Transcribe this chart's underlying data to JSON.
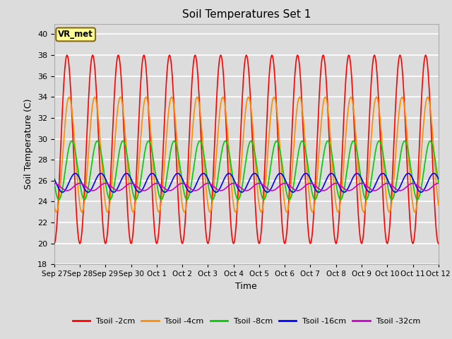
{
  "title": "Soil Temperatures Set 1",
  "xlabel": "Time",
  "ylabel": "Soil Temperature (C)",
  "ylim": [
    18,
    41
  ],
  "yticks": [
    18,
    20,
    22,
    24,
    26,
    28,
    30,
    32,
    34,
    36,
    38,
    40
  ],
  "background_color": "#dcdcdc",
  "plot_bg_color": "#dcdcdc",
  "grid_color": "white",
  "annotation_text": "VR_met",
  "annotation_box_color": "#ffff99",
  "annotation_border_color": "#8b6914",
  "series": {
    "Tsoil -2cm": {
      "color": "#ff0000",
      "lw": 1.2
    },
    "Tsoil -4cm": {
      "color": "#ff8c00",
      "lw": 1.2
    },
    "Tsoil -8cm": {
      "color": "#00cc00",
      "lw": 1.2
    },
    "Tsoil -16cm": {
      "color": "#0000ff",
      "lw": 1.2
    },
    "Tsoil -32cm": {
      "color": "#cc00cc",
      "lw": 1.2
    }
  },
  "x_tick_labels": [
    "Sep 27",
    "Sep 28",
    "Sep 29",
    "Sep 30",
    "Oct 1",
    "Oct 2",
    "Oct 3",
    "Oct 4",
    "Oct 5",
    "Oct 6",
    "Oct 7",
    "Oct 8",
    "Oct 9",
    "Oct 10",
    "Oct 11",
    "Oct 12"
  ],
  "n_days": 15,
  "pts_per_day": 48,
  "T2cm_mean": 29.0,
  "T2cm_amp": 9.0,
  "T4cm_mean": 28.5,
  "T4cm_amp": 5.5,
  "T8cm_mean": 27.0,
  "T8cm_amp": 2.8,
  "T16cm_mean": 25.8,
  "T16cm_amp": 0.9,
  "T32cm_mean": 25.4,
  "T32cm_amp": 0.35
}
